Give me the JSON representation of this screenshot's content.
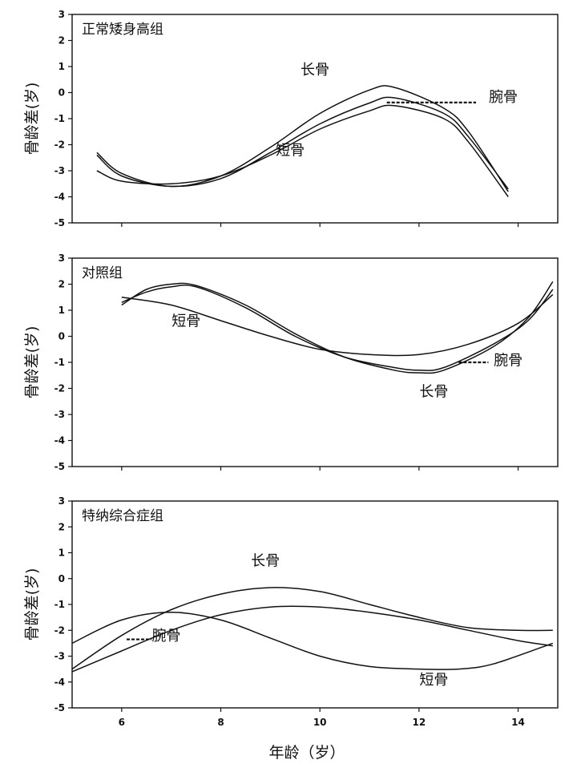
{
  "chart_data": [
    {
      "type": "line",
      "title": "正常矮身高组",
      "ylabel": "骨龄差(岁)",
      "xlabel": "",
      "xlim": [
        5,
        14.8
      ],
      "ylim": [
        -5,
        3
      ],
      "yticks": [
        3,
        2,
        1,
        0,
        -1,
        -2,
        -3,
        -4,
        -5
      ],
      "xticks": [
        6,
        8,
        10,
        12,
        14
      ],
      "show_xtick_labels": false,
      "grid": false,
      "series": [
        {
          "name": "长骨",
          "x": [
            5.5,
            6.0,
            7.0,
            8.0,
            9.0,
            10.0,
            11.0,
            11.5,
            12.5,
            13.0,
            13.8
          ],
          "y": [
            -2.3,
            -3.1,
            -3.6,
            -3.2,
            -2.1,
            -0.8,
            0.1,
            0.2,
            -0.6,
            -1.5,
            -3.8
          ]
        },
        {
          "name": "腕骨",
          "x": [
            5.5,
            6.0,
            7.0,
            8.0,
            9.0,
            10.0,
            11.0,
            11.5,
            12.5,
            13.0,
            13.8
          ],
          "y": [
            -2.4,
            -3.2,
            -3.6,
            -3.3,
            -2.3,
            -1.2,
            -0.4,
            -0.2,
            -0.8,
            -1.7,
            -3.7
          ]
        },
        {
          "name": "短骨",
          "x": [
            5.5,
            6.0,
            7.0,
            8.0,
            9.0,
            10.0,
            11.0,
            11.5,
            12.5,
            13.0,
            13.8
          ],
          "y": [
            -3.0,
            -3.4,
            -3.5,
            -3.2,
            -2.4,
            -1.4,
            -0.7,
            -0.5,
            -1.0,
            -1.9,
            -4.0
          ]
        }
      ],
      "annotations": [
        {
          "text": "长骨",
          "x": 9.9,
          "y": 0.7
        },
        {
          "text": "腕骨",
          "x": 13.7,
          "y": -0.35
        },
        {
          "text": "短骨",
          "x": 9.4,
          "y": -2.4
        }
      ]
    },
    {
      "type": "line",
      "title": "对照组",
      "ylabel": "骨龄差(岁)",
      "xlabel": "",
      "xlim": [
        5,
        14.8
      ],
      "ylim": [
        -5,
        3
      ],
      "yticks": [
        3,
        2,
        1,
        0,
        -1,
        -2,
        -3,
        -4,
        -5
      ],
      "xticks": [
        6,
        8,
        10,
        12,
        14
      ],
      "show_xtick_labels": false,
      "grid": false,
      "series": [
        {
          "name": "长骨",
          "x": [
            6.0,
            6.5,
            7.0,
            7.5,
            8.5,
            9.5,
            10.5,
            11.5,
            12.0,
            12.5,
            13.5,
            14.2,
            14.7
          ],
          "y": [
            1.2,
            1.8,
            2.0,
            1.95,
            1.2,
            0.1,
            -0.8,
            -1.3,
            -1.4,
            -1.3,
            -0.4,
            0.7,
            2.1
          ]
        },
        {
          "name": "腕骨",
          "x": [
            6.0,
            6.5,
            7.0,
            7.5,
            8.5,
            9.5,
            10.5,
            11.5,
            12.0,
            12.5,
            13.5,
            14.2,
            14.7
          ],
          "y": [
            1.3,
            1.7,
            1.9,
            1.9,
            1.1,
            0.0,
            -0.8,
            -1.2,
            -1.3,
            -1.2,
            -0.3,
            0.6,
            1.8
          ]
        },
        {
          "name": "短骨",
          "x": [
            6.0,
            7.0,
            8.0,
            9.0,
            10.0,
            11.0,
            12.0,
            13.0,
            14.0,
            14.7
          ],
          "y": [
            1.5,
            1.2,
            0.6,
            0.0,
            -0.5,
            -0.7,
            -0.7,
            -0.3,
            0.5,
            1.6
          ]
        }
      ],
      "annotations": [
        {
          "text": "短骨",
          "x": 7.3,
          "y": 0.4
        },
        {
          "text": "腕骨",
          "x": 13.8,
          "y": -1.1
        },
        {
          "text": "长骨",
          "x": 12.3,
          "y": -2.3
        }
      ]
    },
    {
      "type": "line",
      "title": "特纳综合症组",
      "ylabel": "骨龄差(岁)",
      "xlabel": "年龄（岁）",
      "xlim": [
        5,
        14.8
      ],
      "ylim": [
        -5,
        3
      ],
      "yticks": [
        3,
        2,
        1,
        0,
        -1,
        -2,
        -3,
        -4,
        -5
      ],
      "xticks": [
        6,
        8,
        10,
        12,
        14
      ],
      "show_xtick_labels": true,
      "grid": false,
      "series": [
        {
          "name": "长骨",
          "x": [
            5.0,
            6.0,
            7.0,
            8.0,
            9.0,
            10.0,
            11.0,
            12.0,
            13.0,
            14.0,
            14.7
          ],
          "y": [
            -3.5,
            -2.2,
            -1.2,
            -0.6,
            -0.35,
            -0.5,
            -1.0,
            -1.5,
            -1.9,
            -2.0,
            -2.0
          ]
        },
        {
          "name": "腕骨",
          "x": [
            5.0,
            6.0,
            7.0,
            8.0,
            9.0,
            10.0,
            11.0,
            12.0,
            13.0,
            14.0,
            14.7
          ],
          "y": [
            -3.6,
            -2.8,
            -2.0,
            -1.4,
            -1.1,
            -1.1,
            -1.3,
            -1.6,
            -2.0,
            -2.4,
            -2.6
          ]
        },
        {
          "name": "短骨",
          "x": [
            5.0,
            6.0,
            7.0,
            8.0,
            9.0,
            10.0,
            11.0,
            12.0,
            12.8,
            13.5,
            14.7
          ],
          "y": [
            -2.5,
            -1.6,
            -1.3,
            -1.6,
            -2.3,
            -3.0,
            -3.4,
            -3.5,
            -3.5,
            -3.3,
            -2.5
          ]
        }
      ],
      "annotations": [
        {
          "text": "长骨",
          "x": 8.9,
          "y": 0.5
        },
        {
          "text": "腕骨",
          "x": 6.9,
          "y": -2.4
        },
        {
          "text": "短骨",
          "x": 12.3,
          "y": -4.1
        }
      ]
    }
  ]
}
